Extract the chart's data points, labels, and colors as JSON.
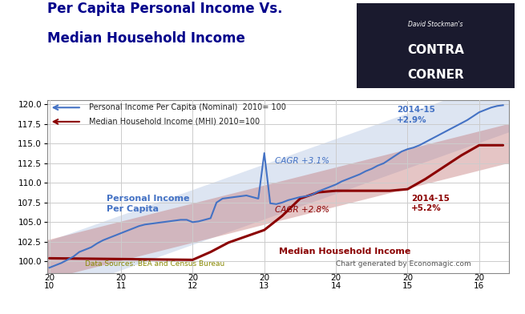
{
  "title_line1": "Per Capita Personal Income Vs.",
  "title_line2": "Median Household Income",
  "title_color": "#00008B",
  "background_color": "#FFFFFF",
  "plot_bg_color": "#FFFFFF",
  "grid_color": "#CCCCCC",
  "ylim": [
    98.5,
    120.5
  ],
  "yticks": [
    100.0,
    102.5,
    105.0,
    107.5,
    110.0,
    112.5,
    115.0,
    117.5,
    120.0
  ],
  "legend_line1": "Personal Income Per Capita (Nominal)  2010= 100",
  "legend_line2": "Median Household Income (MHI) 2010=100",
  "pi_label": "Personal Income\nPer Capita",
  "mhi_label": "Median Household Income",
  "pi_cagr": "CAGR +3.1%",
  "mhi_cagr": "CAGR +2.8%",
  "pi_2014_label": "2014-15\n+2.9%",
  "mhi_2014_label": "2014-15\n+5.2%",
  "datasource": "Data Sources: BEA and Census Bureau",
  "chartgen": "Chart generated by Economagic.com",
  "pi_color": "#4472C4",
  "mhi_color": "#8B0000",
  "pi_band_color": "#AABFDF",
  "mhi_band_color": "#C07070",
  "pi_data_x": [
    2010.0,
    2010.083,
    2010.167,
    2010.25,
    2010.333,
    2010.417,
    2010.5,
    2010.583,
    2010.667,
    2010.75,
    2010.833,
    2010.917,
    2011.0,
    2011.083,
    2011.167,
    2011.25,
    2011.333,
    2011.417,
    2011.5,
    2011.583,
    2011.667,
    2011.75,
    2011.833,
    2011.917,
    2012.0,
    2012.083,
    2012.167,
    2012.25,
    2012.333,
    2012.417,
    2012.5,
    2012.583,
    2012.667,
    2012.75,
    2012.833,
    2012.917,
    2013.0,
    2013.083,
    2013.167,
    2013.25,
    2013.333,
    2013.417,
    2013.5,
    2013.583,
    2013.667,
    2013.75,
    2013.833,
    2013.917,
    2014.0,
    2014.083,
    2014.167,
    2014.25,
    2014.333,
    2014.417,
    2014.5,
    2014.583,
    2014.667,
    2014.75,
    2014.833,
    2014.917,
    2015.0,
    2015.083,
    2015.167,
    2015.25,
    2015.333,
    2015.417,
    2015.5,
    2015.583,
    2015.667,
    2015.75,
    2015.833,
    2015.917,
    2016.0,
    2016.083,
    2016.167,
    2016.25,
    2016.333
  ],
  "pi_data_y": [
    99.2,
    99.5,
    99.8,
    100.2,
    100.6,
    101.2,
    101.5,
    101.8,
    102.3,
    102.7,
    103.0,
    103.3,
    103.6,
    103.9,
    104.2,
    104.5,
    104.7,
    104.8,
    104.9,
    105.0,
    105.1,
    105.2,
    105.3,
    105.3,
    105.0,
    105.1,
    105.3,
    105.5,
    107.5,
    108.0,
    108.1,
    108.2,
    108.3,
    108.4,
    108.2,
    108.0,
    113.8,
    107.4,
    107.3,
    107.5,
    107.8,
    108.0,
    108.2,
    108.3,
    108.5,
    108.9,
    109.2,
    109.5,
    109.8,
    110.2,
    110.5,
    110.8,
    111.1,
    111.5,
    111.8,
    112.2,
    112.5,
    113.0,
    113.5,
    114.0,
    114.3,
    114.5,
    114.8,
    115.2,
    115.6,
    116.0,
    116.4,
    116.8,
    117.2,
    117.6,
    118.0,
    118.5,
    119.0,
    119.3,
    119.6,
    119.8,
    119.9
  ],
  "mhi_data_x": [
    2010.0,
    2011.0,
    2012.0,
    2012.25,
    2012.5,
    2012.75,
    2013.0,
    2013.25,
    2013.5,
    2013.75,
    2014.0,
    2014.25,
    2014.5,
    2014.75,
    2015.0,
    2015.25,
    2015.5,
    2015.75,
    2016.0,
    2016.333
  ],
  "mhi_data_y": [
    100.4,
    100.3,
    100.2,
    101.2,
    102.4,
    103.2,
    104.0,
    105.8,
    108.0,
    108.8,
    109.0,
    109.0,
    109.0,
    109.0,
    109.2,
    110.5,
    112.0,
    113.5,
    114.8,
    114.8
  ],
  "xtick_positions": [
    2010,
    2011,
    2012,
    2013,
    2014,
    2015,
    2016
  ],
  "xtick_labels": [
    "20\n10",
    "20\n11",
    "20\n12",
    "20\n13",
    "20\n14",
    "20\n15",
    "20\n16"
  ],
  "xlim": [
    2009.97,
    2016.42
  ]
}
